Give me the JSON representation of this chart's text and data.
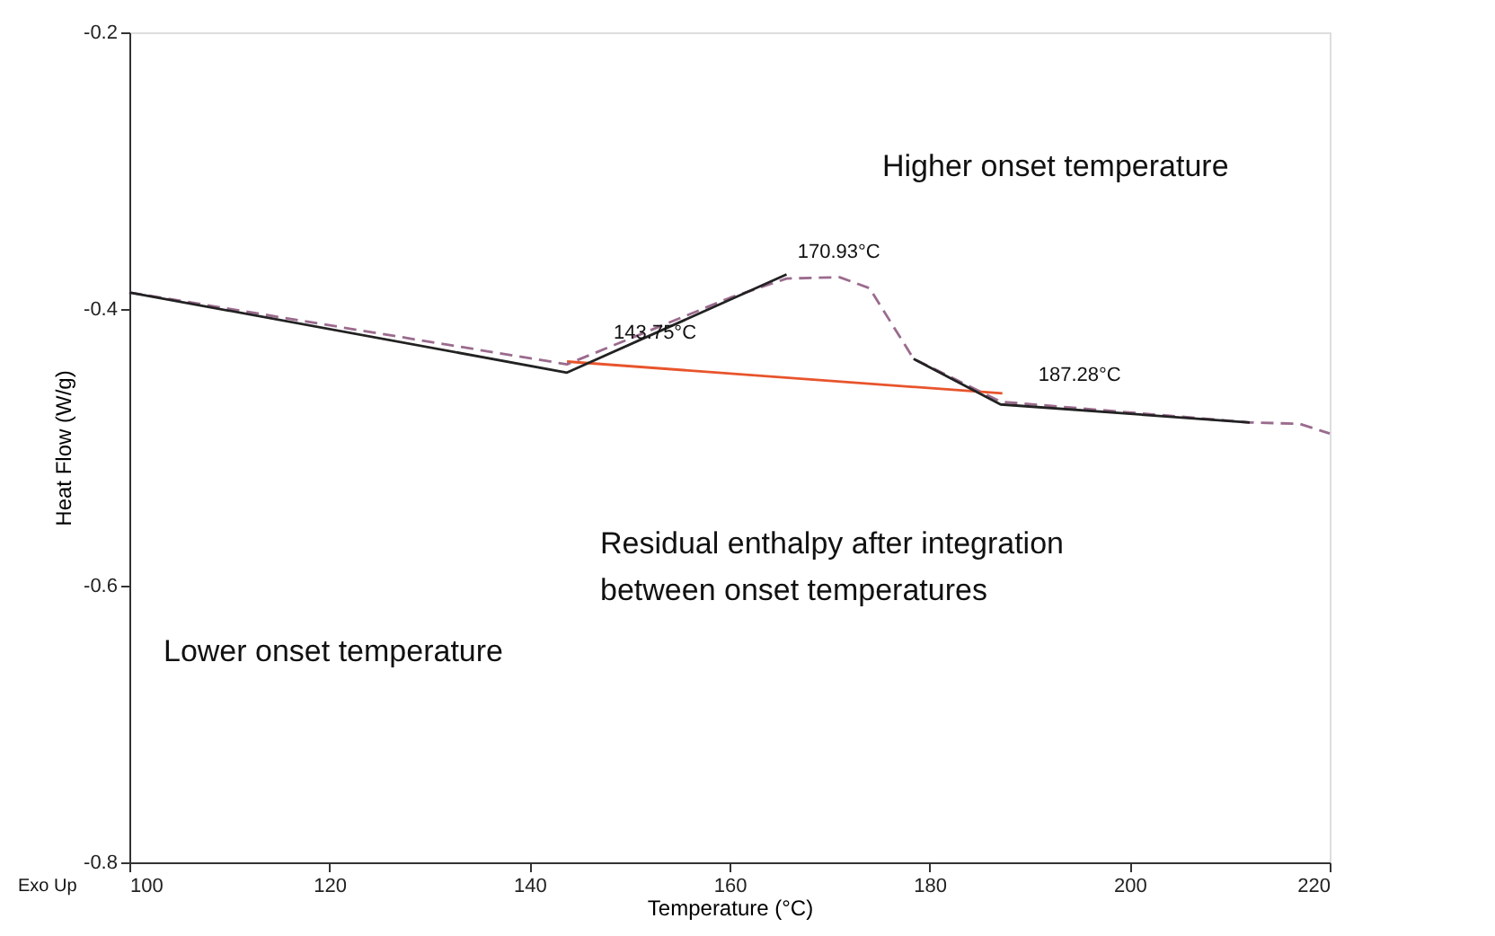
{
  "chart_data": {
    "type": "line",
    "xlabel": "Temperature (°C)",
    "ylabel": "Heat Flow (W/g)",
    "xlim": [
      100,
      220
    ],
    "xticks": [
      100,
      120,
      140,
      160,
      180,
      200,
      220
    ],
    "ylim": [
      -0.8,
      -0.2
    ],
    "yticks": [
      -0.8,
      -0.6,
      -0.4,
      -0.2
    ],
    "grid": false,
    "marker": "none",
    "series": [
      {
        "color": "#e8542c",
        "line_style": "solid",
        "x": [
          143.75,
          187.28
        ],
        "values": [
          -0.438,
          -0.461
        ]
      },
      {
        "color": "#9b6b8e",
        "line_style": "dashed",
        "x": [
          100,
          143.75,
          160,
          165.7,
          171,
          174,
          178.4,
          187.1,
          212,
          217,
          220
        ],
        "values": [
          -0.388,
          -0.44,
          -0.392,
          -0.378,
          -0.377,
          -0.385,
          -0.436,
          -0.467,
          -0.482,
          -0.483,
          -0.49
        ]
      },
      {
        "color": "#222222",
        "line_style": "solid",
        "x": [
          100,
          143.75,
          165.7
        ],
        "values": [
          -0.388,
          -0.446,
          -0.375
        ]
      },
      {
        "color": "#222222",
        "line_style": "solid",
        "x": [
          178.4,
          187.1,
          212
        ],
        "values": [
          -0.436,
          -0.469,
          -0.482
        ]
      }
    ],
    "annotations": [
      {
        "text": "143.75°C",
        "x": 143.75,
        "y": -0.446
      },
      {
        "text": "170.93°C",
        "x": 170.93,
        "y": -0.377
      },
      {
        "text": "187.28°C",
        "x": 187.28,
        "y": -0.461
      },
      "Higher onset temperature",
      "Residual enthalpy after integration\nbetween onset temperatures",
      "Lower onset temperature",
      "Exo Up"
    ]
  }
}
